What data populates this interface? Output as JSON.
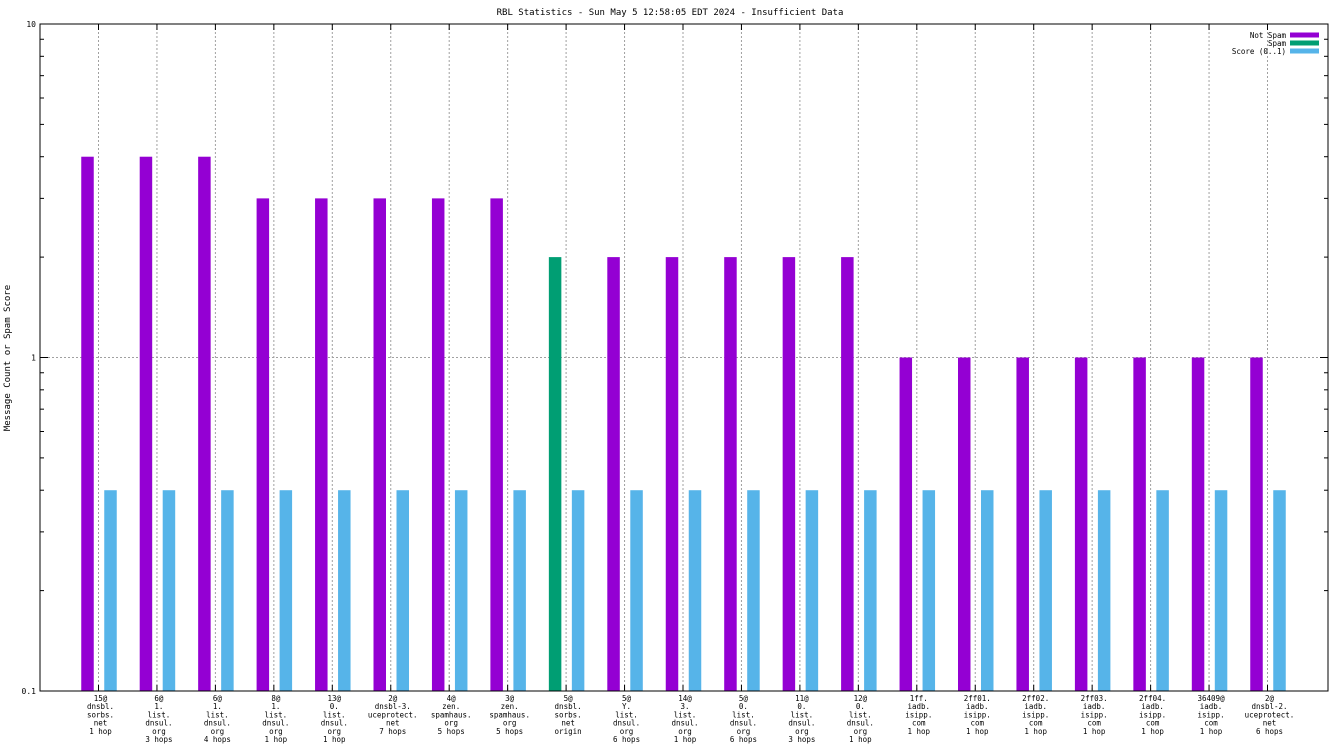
{
  "colors": {
    "not_spam": "#9400d3",
    "spam": "#009e73",
    "score": "#56b4e9",
    "grid": "#a0a0a0",
    "axis": "#000000"
  },
  "chart_data": {
    "type": "bar",
    "title": "RBL Statistics - Sun May  5 12:58:05 EDT 2024 - Insufficient Data",
    "xlabel": "",
    "ylabel": "Message Count or Spam Score",
    "y_scale": "log",
    "ylim": [
      0.1,
      10
    ],
    "y_ticks": [
      {
        "value": 0.1,
        "label": "0.1"
      },
      {
        "value": 1,
        "label": "1"
      },
      {
        "value": 10,
        "label": "10"
      }
    ],
    "grid": true,
    "legend_position": "top-right",
    "categories": [
      [
        "15@",
        "dnsbl.",
        "sorbs.",
        "net",
        "1 hop"
      ],
      [
        "6@",
        "1.",
        "list.",
        "dnsul.",
        "org",
        "3 hops"
      ],
      [
        "6@",
        "1.",
        "list.",
        "dnsul.",
        "org",
        "4 hops"
      ],
      [
        "8@",
        "1.",
        "list.",
        "dnsul.",
        "org",
        "1 hop"
      ],
      [
        "13@",
        "0.",
        "list.",
        "dnsul.",
        "org",
        "1 hop"
      ],
      [
        "2@",
        "dnsbl-3.",
        "uceprotect.",
        "net",
        "7 hops"
      ],
      [
        "4@",
        "zen.",
        "spamhaus.",
        "org",
        "5 hops"
      ],
      [
        "3@",
        "zen.",
        "spamhaus.",
        "org",
        "5 hops"
      ],
      [
        "5@",
        "dnsbl.",
        "sorbs.",
        "net",
        "origin"
      ],
      [
        "5@",
        "Y.",
        "list.",
        "dnsul.",
        "org",
        "6 hops"
      ],
      [
        "14@",
        "3.",
        "list.",
        "dnsul.",
        "org",
        "1 hop"
      ],
      [
        "5@",
        "0.",
        "list.",
        "dnsul.",
        "org",
        "6 hops"
      ],
      [
        "11@",
        "0.",
        "list.",
        "dnsul.",
        "org",
        "3 hops"
      ],
      [
        "12@",
        "0.",
        "list.",
        "dnsul.",
        "org",
        "1 hop"
      ],
      [
        "1ff.",
        "iadb.",
        "isipp.",
        "com",
        "1 hop"
      ],
      [
        "2ff01.",
        "iadb.",
        "isipp.",
        "com",
        "1 hop"
      ],
      [
        "2ff02.",
        "iadb.",
        "isipp.",
        "com",
        "1 hop"
      ],
      [
        "2ff03.",
        "iadb.",
        "isipp.",
        "com",
        "1 hop"
      ],
      [
        "2ff04.",
        "iadb.",
        "isipp.",
        "com",
        "1 hop"
      ],
      [
        "36409@",
        "iadb.",
        "isipp.",
        "com",
        "1 hop"
      ],
      [
        "2@",
        "dnsbl-2.",
        "uceprotect.",
        "net",
        "6 hops"
      ]
    ],
    "series": [
      {
        "name": "Not Spam",
        "color_key": "not_spam",
        "values": [
          4,
          4,
          4,
          3,
          3,
          3,
          3,
          3,
          null,
          2,
          2,
          2,
          2,
          2,
          1,
          1,
          1,
          1,
          1,
          1,
          1
        ]
      },
      {
        "name": "Spam",
        "color_key": "spam",
        "values": [
          null,
          null,
          null,
          null,
          null,
          null,
          null,
          null,
          2,
          null,
          null,
          null,
          null,
          null,
          null,
          null,
          null,
          null,
          null,
          null,
          null
        ]
      },
      {
        "name": "Score (0..1)",
        "color_key": "score",
        "values": [
          0.4,
          0.4,
          0.4,
          0.4,
          0.4,
          0.4,
          0.4,
          0.4,
          0.4,
          0.4,
          0.4,
          0.4,
          0.4,
          0.4,
          0.4,
          0.4,
          0.4,
          0.4,
          0.4,
          0.4,
          0.4
        ]
      }
    ]
  }
}
